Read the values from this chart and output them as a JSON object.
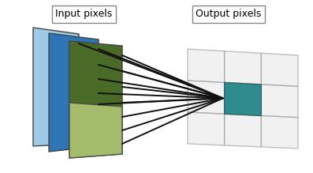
{
  "title_input": "Input pixels",
  "title_output": "Output pixels",
  "bg_color": "#ffffff",
  "panel_colors": [
    "#9ecae8",
    "#2e75b6",
    "#4a6b28"
  ],
  "panel_highlight": "#2e8b8e",
  "panel_light_green": "#b5cc7a",
  "grid_line_color": "#b0b0b0",
  "arrow_color": "#111111",
  "label_box_color": "#ffffff",
  "label_box_edge": "#888888",
  "grid_bg": "#e8e8e8"
}
